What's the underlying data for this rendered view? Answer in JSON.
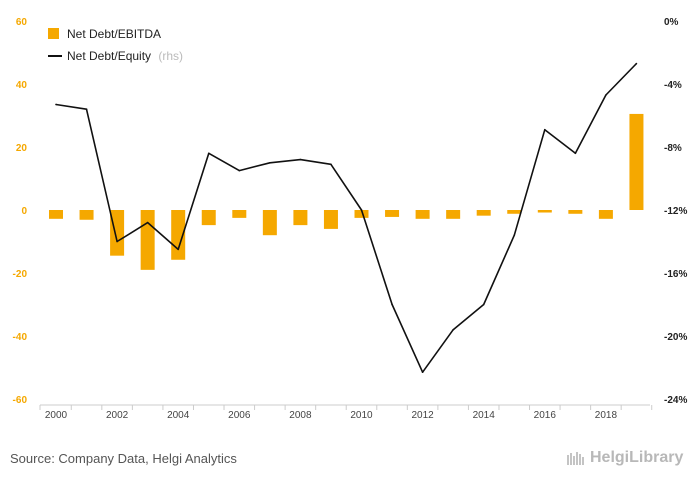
{
  "chart_data": {
    "type": "bar",
    "categories": [
      "2000",
      "2001",
      "2002",
      "2003",
      "2004",
      "2005",
      "2006",
      "2007",
      "2008",
      "2009",
      "2010",
      "2011",
      "2012",
      "2013",
      "2014",
      "2015",
      "2016",
      "2017",
      "2018",
      "2019"
    ],
    "x_tick_labels": [
      "2000",
      "2002",
      "2004",
      "2006",
      "2008",
      "2010",
      "2012",
      "2014",
      "2016",
      "2018"
    ],
    "series": [
      {
        "name": "Net Debt/EBITDA",
        "type": "bar",
        "axis": "left",
        "color": "#f5a800",
        "values": [
          -2.8,
          -3.1,
          -14.5,
          -19.0,
          -15.8,
          -4.8,
          -2.5,
          -8.0,
          -4.8,
          -6.0,
          -2.5,
          -2.2,
          -2.8,
          -2.8,
          -1.8,
          -1.2,
          -0.8,
          -1.2,
          -2.8,
          30.5
        ]
      },
      {
        "name": "Net Debt/Equity",
        "legend_suffix": "(rhs)",
        "type": "line",
        "axis": "right",
        "color": "#111111",
        "values": [
          -5.3,
          -5.6,
          -14.0,
          -12.8,
          -14.5,
          -8.4,
          -9.5,
          -9.0,
          -8.8,
          -9.1,
          -12.0,
          -18.0,
          -22.3,
          -19.6,
          -18.0,
          -13.6,
          -6.9,
          -8.4,
          -4.7,
          -2.7
        ]
      }
    ],
    "y_left": {
      "ticks": [
        "60",
        "40",
        "20",
        "0",
        "-20",
        "-40",
        "-60"
      ],
      "ylim": [
        -60,
        60
      ]
    },
    "y_right": {
      "ticks": [
        "0%",
        "-4%",
        "-8%",
        "-12%",
        "-16%",
        "-20%",
        "-24%"
      ],
      "ylim": [
        -24,
        0
      ]
    },
    "grid": false,
    "legend_position": "top-left"
  },
  "source_text": "Source: Company Data, Helgi Analytics",
  "brand_text": "HelgiLibrary"
}
